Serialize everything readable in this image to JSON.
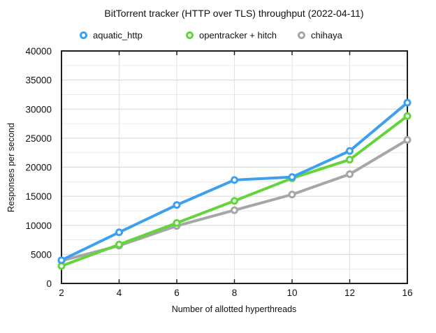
{
  "chart_data": {
    "type": "line",
    "title": "BitTorrent tracker (HTTP over TLS) throughput (2022-04-11)",
    "xlabel": "Number of allotted hyperthreads",
    "ylabel": "Responses per second",
    "categories": [
      "2",
      "4",
      "6",
      "8",
      "10",
      "12",
      "16"
    ],
    "x_values": [
      2,
      4,
      6,
      8,
      10,
      12,
      16
    ],
    "ylim": [
      0,
      40000
    ],
    "y_major_step": 5000,
    "y_minor_step": 2500,
    "y_tick_labels": [
      "0",
      "5000",
      "10000",
      "15000",
      "20000",
      "25000",
      "30000",
      "35000",
      "40000"
    ],
    "grid": true,
    "legend_position": "top",
    "marker_style": "open-circle",
    "series": [
      {
        "name": "aquatic_http",
        "color": "#3C9FF0",
        "values": [
          4000,
          8800,
          13500,
          17800,
          18300,
          22800,
          31100
        ]
      },
      {
        "name": "opentracker + hitch",
        "color": "#64D43C",
        "values": [
          3000,
          6700,
          10400,
          14200,
          18100,
          21300,
          28800
        ]
      },
      {
        "name": "chihaya",
        "color": "#A6A6A6",
        "values": [
          3900,
          6500,
          9900,
          12600,
          15300,
          18800,
          24700
        ]
      }
    ],
    "colors": {
      "axis": "#1f1f1f",
      "text": "#111111",
      "grid_major": "#d6d6d6",
      "grid_minor": "#eaeaea",
      "grid_vertical": "#e2e2e2",
      "background": "#ffffff"
    }
  }
}
